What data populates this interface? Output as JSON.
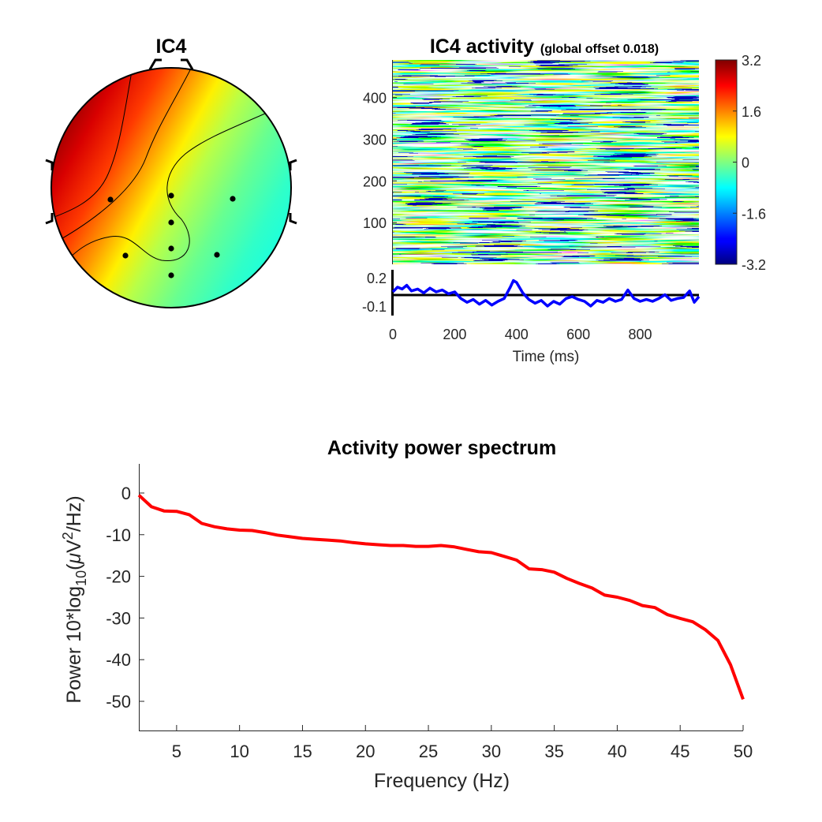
{
  "chart_data": [
    {
      "type": "heatmap",
      "subtype": "scalp-topography",
      "title": "IC4",
      "colormap": "jet",
      "electrodes": 9
    },
    {
      "type": "heatmap",
      "subtype": "erp-image",
      "title": "IC4 activity",
      "subtitle": "(global offset 0.018)",
      "colormap": "jet",
      "y_ticks": [
        "100",
        "200",
        "300",
        "400"
      ],
      "ylim": [
        0,
        490
      ],
      "colorbar": {
        "ticks": [
          "3.2",
          "1.6",
          "0",
          "-1.6",
          "-3.2"
        ],
        "range": [
          -3.2,
          3.2
        ]
      }
    },
    {
      "type": "line",
      "subtype": "erp-average",
      "color": "#0000ff",
      "xlabel": "Time (ms)",
      "x_ticks": [
        "0",
        "200",
        "400",
        "600",
        "800"
      ],
      "xlim": [
        0,
        990
      ],
      "y_ticks": [
        "0.2",
        "-0.1"
      ],
      "ylim": [
        -0.2,
        0.3
      ],
      "x": [
        0,
        15,
        30,
        45,
        60,
        80,
        100,
        120,
        140,
        160,
        180,
        200,
        220,
        240,
        260,
        280,
        300,
        320,
        340,
        360,
        380,
        390,
        400,
        420,
        440,
        460,
        480,
        500,
        520,
        540,
        560,
        580,
        600,
        620,
        640,
        660,
        680,
        700,
        720,
        740,
        760,
        780,
        800,
        820,
        840,
        860,
        880,
        900,
        920,
        940,
        960,
        975,
        990
      ],
      "values": [
        0.05,
        0.1,
        0.08,
        0.12,
        0.06,
        0.08,
        0.04,
        0.09,
        0.05,
        0.07,
        0.03,
        0.05,
        -0.02,
        -0.06,
        -0.03,
        -0.08,
        -0.04,
        -0.09,
        -0.05,
        -0.02,
        0.1,
        0.17,
        0.15,
        0.04,
        -0.03,
        -0.07,
        -0.04,
        -0.1,
        -0.05,
        -0.08,
        -0.02,
        0.0,
        -0.03,
        -0.05,
        -0.1,
        -0.04,
        -0.06,
        -0.02,
        -0.05,
        -0.03,
        0.07,
        -0.02,
        -0.05,
        -0.03,
        -0.05,
        -0.02,
        0.02,
        -0.04,
        -0.02,
        -0.01,
        0.06,
        -0.06,
        0.0
      ]
    },
    {
      "type": "line",
      "title": "Activity power spectrum",
      "xlabel": "Frequency (Hz)",
      "ylabel_parts": [
        "Power 10*log",
        "10",
        "(",
        "μ",
        "V",
        "2",
        "/Hz)"
      ],
      "color": "#ff0000",
      "xlim": [
        2,
        50
      ],
      "ylim": [
        -57,
        7
      ],
      "x_ticks": [
        5,
        10,
        15,
        20,
        25,
        30,
        35,
        40,
        45,
        50
      ],
      "y_ticks": [
        0,
        -10,
        -20,
        -30,
        -40,
        -50
      ],
      "x": [
        2,
        3,
        4,
        5,
        6,
        7,
        8,
        9,
        10,
        11,
        12,
        13,
        14,
        15,
        16,
        17,
        18,
        19,
        20,
        21,
        22,
        23,
        24,
        25,
        26,
        27,
        28,
        29,
        30,
        31,
        32,
        33,
        34,
        35,
        36,
        37,
        38,
        39,
        40,
        41,
        42,
        43,
        44,
        45,
        46,
        47,
        48,
        49,
        50
      ],
      "values": [
        -0.5,
        -3.3,
        -4.3,
        -4.4,
        -5.2,
        -7.3,
        -8.1,
        -8.6,
        -8.9,
        -9.0,
        -9.5,
        -10.1,
        -10.5,
        -10.9,
        -11.1,
        -11.3,
        -11.5,
        -11.9,
        -12.2,
        -12.4,
        -12.6,
        -12.6,
        -12.8,
        -12.8,
        -12.6,
        -12.9,
        -13.5,
        -14.1,
        -14.3,
        -15.2,
        -16.1,
        -18.2,
        -18.4,
        -19.0,
        -20.5,
        -21.7,
        -22.8,
        -24.5,
        -25.0,
        -25.8,
        -27.0,
        -27.5,
        -29.2,
        -30.1,
        -30.9,
        -32.8,
        -35.4,
        -41.2,
        -49.5
      ]
    }
  ]
}
